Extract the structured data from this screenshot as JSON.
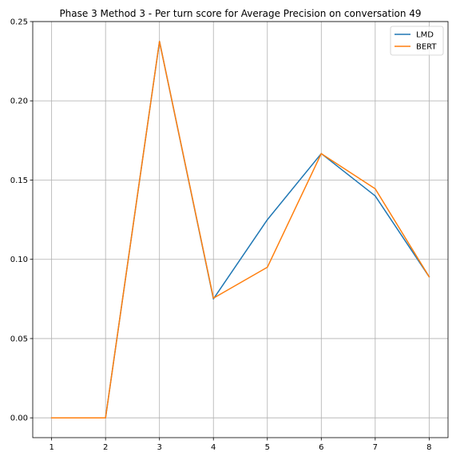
{
  "chart_data": {
    "type": "line",
    "title": "Phase 3 Method 3 - Per turn score for Average Precision on conversation 49",
    "xlabel": "",
    "ylabel": "",
    "x": [
      1,
      2,
      3,
      4,
      5,
      6,
      7,
      8
    ],
    "xlim": [
      0.65,
      8.35
    ],
    "ylim": [
      -0.0125,
      0.25
    ],
    "x_ticks": [
      "1",
      "2",
      "3",
      "4",
      "5",
      "6",
      "7",
      "8"
    ],
    "y_ticks": [
      "0.00",
      "0.05",
      "0.10",
      "0.15",
      "0.20",
      "0.25"
    ],
    "grid": true,
    "legend_position": "top-right",
    "series": [
      {
        "name": "LMD",
        "color": "#1f77b4",
        "values": [
          0.0,
          0.0,
          0.2375,
          0.075,
          0.125,
          0.1667,
          0.14,
          0.089
        ]
      },
      {
        "name": "BERT",
        "color": "#ff7f0e",
        "values": [
          0.0,
          0.0,
          0.2375,
          0.0755,
          0.095,
          0.1667,
          0.1445,
          0.089
        ]
      }
    ]
  }
}
